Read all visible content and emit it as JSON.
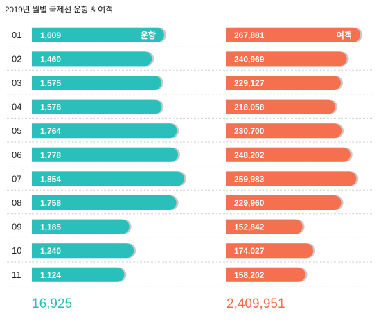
{
  "title": "2019년 월별 국제선 운항 & 여객",
  "colors": {
    "flights": "#2bbfbb",
    "passengers": "#f4704f",
    "shadow": "#c8c8c8",
    "separator": "#cfcfcf"
  },
  "chart_data": {
    "type": "bar",
    "title": "2019년 월별 국제선 운항 & 여객",
    "categories": [
      "01",
      "02",
      "03",
      "04",
      "05",
      "06",
      "07",
      "08",
      "09",
      "10",
      "11"
    ],
    "series": [
      {
        "name": "운항",
        "values": [
          1609,
          1460,
          1575,
          1578,
          1764,
          1778,
          1854,
          1758,
          1185,
          1240,
          1124
        ],
        "labels": [
          "1,609",
          "1,460",
          "1,575",
          "1,578",
          "1,764",
          "1,778",
          "1,854",
          "1,758",
          "1,185",
          "1,240",
          "1,124"
        ]
      },
      {
        "name": "여객",
        "values": [
          267881,
          240969,
          229127,
          218058,
          230700,
          248202,
          259983,
          229960,
          152842,
          174027,
          158202
        ],
        "labels": [
          "267,881",
          "240,969",
          "229,127",
          "218,058",
          "230,700",
          "248,202",
          "259,983",
          "229,960",
          "152,842",
          "174,027",
          "158,202"
        ]
      }
    ],
    "totals": {
      "flights": "16,925",
      "passengers": "2,409,951"
    }
  }
}
